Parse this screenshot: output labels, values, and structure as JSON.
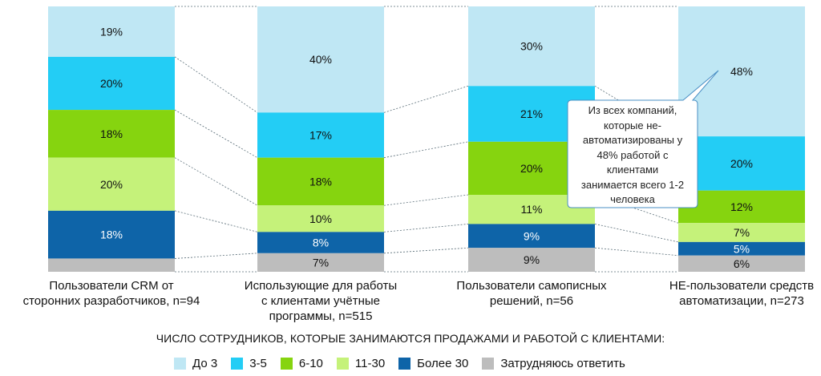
{
  "chart_data": {
    "type": "bar",
    "stacked": true,
    "percent": true,
    "categories": [
      "Пользователи CRM от сторонних разработчиков, n=94",
      "Использующие для работы с клиентами учётные программы, n=515",
      "Пользователи самописных решений, n=56",
      "НЕ-пользователи средств автоматизации, n=273"
    ],
    "category_lines": [
      [
        "Пользователи CRM от",
        "сторонних разработчиков, n=94"
      ],
      [
        "Использующие для работы",
        "с клиентами учётные",
        "программы, n=515"
      ],
      [
        "Пользователи самописных",
        "решений, n=56"
      ],
      [
        "НЕ-пользователи средств",
        "автоматизации, n=273"
      ]
    ],
    "series": [
      {
        "name": "До 3",
        "color": "#bfe7f4",
        "values": [
          19,
          40,
          30,
          48
        ],
        "labels": [
          "19%",
          "40%",
          "30%",
          "48%"
        ]
      },
      {
        "name": "3-5",
        "color": "#23cdf5",
        "values": [
          20,
          17,
          21,
          20
        ],
        "labels": [
          "20%",
          "17%",
          "21%",
          "20%"
        ]
      },
      {
        "name": "6-10",
        "color": "#86d40f",
        "values": [
          18,
          18,
          20,
          12
        ],
        "labels": [
          "18%",
          "18%",
          "20%",
          "12%"
        ]
      },
      {
        "name": "11-30",
        "color": "#c5f27a",
        "values": [
          20,
          10,
          11,
          7
        ],
        "labels": [
          "20%",
          "10%",
          "11%",
          "7%"
        ]
      },
      {
        "name": "Более 30",
        "color": "#0e64a8",
        "values": [
          18,
          8,
          9,
          5
        ],
        "labels": [
          "18%",
          "8%",
          "9%",
          "5%"
        ]
      },
      {
        "name": "Затрудняюсь ответить",
        "color": "#bdbdbd",
        "values": [
          5,
          7,
          9,
          6
        ],
        "labels": [
          "",
          "7%",
          "9%",
          "6%"
        ]
      }
    ],
    "xlabel": "ЧИСЛО СОТРУДНИКОВ, КОТОРЫЕ ЗАНИМАЮТСЯ ПРОДАЖАМИ И РАБОТОЙ С КЛИЕНТАМИ:",
    "ylim": [
      0,
      100
    ],
    "legend_position": "bottom",
    "grid": false,
    "annotation": {
      "lines": [
        "Из всех компаний,",
        "которые не-",
        "автоматизированы у",
        "48%  работой с",
        "клиентами",
        "занимается всего 1-2",
        "человека"
      ],
      "points_to": "НЕ-пользователи средств автоматизации: До 3 = 48%"
    }
  }
}
